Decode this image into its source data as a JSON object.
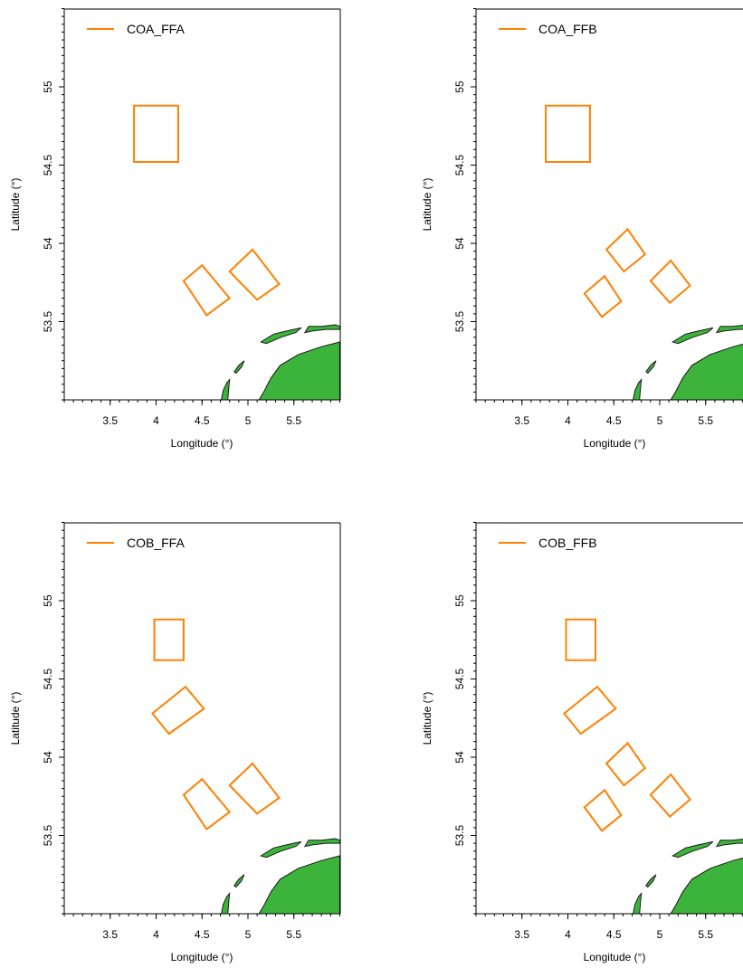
{
  "figure": {
    "colors": {
      "zone": "#FF8000",
      "land": "#3CB43C",
      "coast": "#1a1a1a",
      "axis": "#000000"
    }
  },
  "chart_data": [
    {
      "type": "map",
      "legend": "COA_FFA",
      "legend_position": "top-left",
      "xlabel": "Longitude (°)",
      "ylabel": "Latitude (°)",
      "xlim": [
        3.0,
        6.0
      ],
      "ylim": [
        53.0,
        55.5
      ],
      "xticks": [
        3.5,
        4,
        4.5,
        5,
        5.5
      ],
      "xtick_labels": [
        "3.5",
        "4",
        "4.5",
        "5",
        "5.5"
      ],
      "yticks": [
        53.5,
        54,
        54.5,
        55
      ],
      "ytick_labels": [
        "53.5",
        "54",
        "54.5",
        "55"
      ],
      "areas": [
        [
          [
            3.76,
            54.88
          ],
          [
            4.24,
            54.88
          ],
          [
            4.24,
            54.52
          ],
          [
            3.76,
            54.52
          ]
        ],
        [
          [
            4.3,
            53.76
          ],
          [
            4.5,
            53.86
          ],
          [
            4.8,
            53.65
          ],
          [
            4.55,
            53.54
          ]
        ],
        [
          [
            4.8,
            53.82
          ],
          [
            5.05,
            53.96
          ],
          [
            5.34,
            53.74
          ],
          [
            5.1,
            53.64
          ]
        ]
      ]
    },
    {
      "type": "map",
      "legend": "COA_FFB",
      "legend_position": "top-left",
      "xlabel": "Longitude (°)",
      "ylabel": "Latitude (°)",
      "xlim": [
        3.0,
        6.0
      ],
      "ylim": [
        53.0,
        55.5
      ],
      "xticks": [
        3.5,
        4,
        4.5,
        5,
        5.5
      ],
      "xtick_labels": [
        "3.5",
        "4",
        "4.5",
        "5",
        "5.5"
      ],
      "yticks": [
        53.5,
        54,
        54.5,
        55
      ],
      "ytick_labels": [
        "53.5",
        "54",
        "54.5",
        "55"
      ],
      "areas": [
        [
          [
            3.76,
            54.88
          ],
          [
            4.24,
            54.88
          ],
          [
            4.24,
            54.52
          ],
          [
            3.76,
            54.52
          ]
        ],
        [
          [
            4.42,
            53.96
          ],
          [
            4.65,
            54.09
          ],
          [
            4.84,
            53.93
          ],
          [
            4.61,
            53.82
          ]
        ],
        [
          [
            4.18,
            53.68
          ],
          [
            4.4,
            53.79
          ],
          [
            4.58,
            53.63
          ],
          [
            4.37,
            53.53
          ]
        ],
        [
          [
            4.9,
            53.76
          ],
          [
            5.12,
            53.89
          ],
          [
            5.33,
            53.73
          ],
          [
            5.11,
            53.62
          ]
        ]
      ]
    },
    {
      "type": "map",
      "legend": "COB_FFA",
      "legend_position": "top-left",
      "xlabel": "Longitude (°)",
      "ylabel": "Latitude (°)",
      "xlim": [
        3.0,
        6.0
      ],
      "ylim": [
        53.0,
        55.5
      ],
      "xticks": [
        3.5,
        4,
        4.5,
        5,
        5.5
      ],
      "xtick_labels": [
        "3.5",
        "4",
        "4.5",
        "5",
        "5.5"
      ],
      "yticks": [
        53.5,
        54,
        54.5,
        55
      ],
      "ytick_labels": [
        "53.5",
        "54",
        "54.5",
        "55"
      ],
      "areas": [
        [
          [
            3.98,
            54.88
          ],
          [
            4.3,
            54.88
          ],
          [
            4.3,
            54.62
          ],
          [
            3.98,
            54.62
          ]
        ],
        [
          [
            3.96,
            54.28
          ],
          [
            4.32,
            54.45
          ],
          [
            4.52,
            54.31
          ],
          [
            4.14,
            54.15
          ]
        ],
        [
          [
            4.3,
            53.76
          ],
          [
            4.5,
            53.86
          ],
          [
            4.8,
            53.65
          ],
          [
            4.55,
            53.54
          ]
        ],
        [
          [
            4.8,
            53.82
          ],
          [
            5.05,
            53.96
          ],
          [
            5.34,
            53.74
          ],
          [
            5.1,
            53.64
          ]
        ]
      ]
    },
    {
      "type": "map",
      "legend": "COB_FFB",
      "legend_position": "top-left",
      "xlabel": "Longitude (°)",
      "ylabel": "Latitude (°)",
      "xlim": [
        3.0,
        6.0
      ],
      "ylim": [
        53.0,
        55.5
      ],
      "xticks": [
        3.5,
        4,
        4.5,
        5,
        5.5
      ],
      "xtick_labels": [
        "3.5",
        "4",
        "4.5",
        "5",
        "5.5"
      ],
      "yticks": [
        53.5,
        54,
        54.5,
        55
      ],
      "ytick_labels": [
        "53.5",
        "54",
        "54.5",
        "55"
      ],
      "areas": [
        [
          [
            3.98,
            54.88
          ],
          [
            4.3,
            54.88
          ],
          [
            4.3,
            54.62
          ],
          [
            3.98,
            54.62
          ]
        ],
        [
          [
            3.96,
            54.28
          ],
          [
            4.32,
            54.45
          ],
          [
            4.52,
            54.31
          ],
          [
            4.14,
            54.15
          ]
        ],
        [
          [
            4.42,
            53.96
          ],
          [
            4.65,
            54.09
          ],
          [
            4.84,
            53.93
          ],
          [
            4.61,
            53.82
          ]
        ],
        [
          [
            4.18,
            53.68
          ],
          [
            4.4,
            53.79
          ],
          [
            4.58,
            53.63
          ],
          [
            4.37,
            53.53
          ]
        ],
        [
          [
            4.9,
            53.76
          ],
          [
            5.12,
            53.89
          ],
          [
            5.33,
            53.73
          ],
          [
            5.11,
            53.62
          ]
        ]
      ]
    }
  ],
  "land": [
    [
      [
        6.0,
        53.37
      ],
      [
        5.8,
        53.34
      ],
      [
        5.55,
        53.29
      ],
      [
        5.35,
        53.22
      ],
      [
        5.25,
        53.14
      ],
      [
        5.18,
        53.06
      ],
      [
        5.12,
        53.0
      ],
      [
        6.0,
        53.0
      ]
    ],
    [
      [
        4.71,
        53.0
      ],
      [
        4.73,
        53.06
      ],
      [
        4.77,
        53.11
      ],
      [
        4.8,
        53.13
      ],
      [
        4.79,
        53.07
      ],
      [
        4.78,
        53.0
      ]
    ],
    [
      [
        4.85,
        53.18
      ],
      [
        4.9,
        53.22
      ],
      [
        4.96,
        53.25
      ],
      [
        4.93,
        53.21
      ],
      [
        4.87,
        53.17
      ]
    ],
    [
      [
        5.14,
        53.37
      ],
      [
        5.28,
        53.42
      ],
      [
        5.42,
        53.44
      ],
      [
        5.5,
        53.45
      ],
      [
        5.58,
        53.46
      ],
      [
        5.52,
        53.43
      ],
      [
        5.36,
        53.4
      ],
      [
        5.2,
        53.36
      ]
    ],
    [
      [
        5.62,
        53.43
      ],
      [
        5.66,
        53.47
      ],
      [
        5.8,
        53.47
      ],
      [
        5.95,
        53.48
      ],
      [
        6.0,
        53.47
      ],
      [
        6.0,
        53.45
      ],
      [
        5.85,
        53.45
      ],
      [
        5.7,
        53.44
      ]
    ]
  ]
}
